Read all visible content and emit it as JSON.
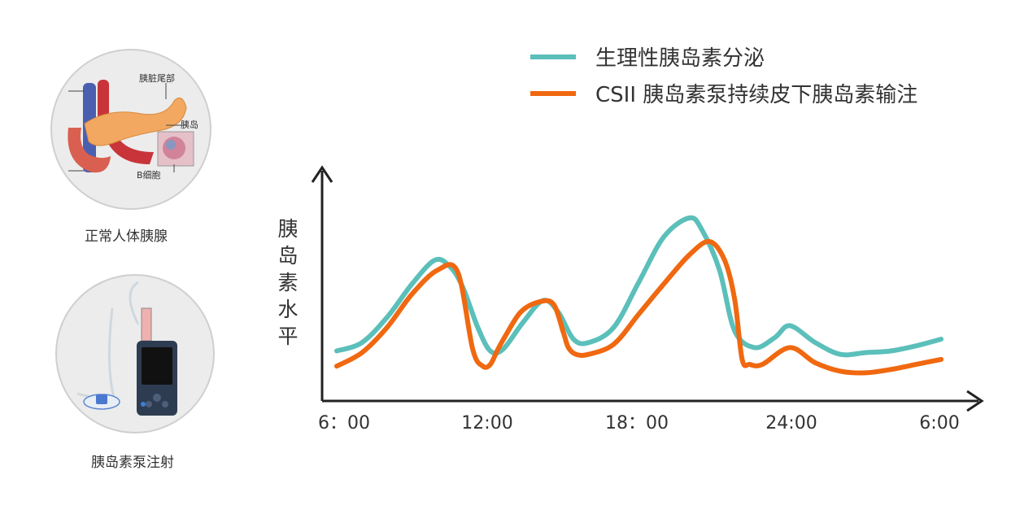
{
  "left_panel": {
    "pancreas": {
      "caption": "正常人体胰腺",
      "labels": {
        "tail": "胰脏尾部",
        "islet": "胰岛",
        "beta_cell": "B细胞"
      }
    },
    "pump": {
      "caption": "胰岛素泵注射"
    }
  },
  "chart_data": {
    "type": "line",
    "title": "",
    "xlabel": "",
    "ylabel": "胰岛素水平",
    "ylabel_chars": [
      "胰",
      "岛",
      "素",
      "水",
      "平"
    ],
    "x_tick_labels": [
      "6：00",
      "12:00",
      "18：00",
      "24:00",
      "6:00"
    ],
    "x": [
      6,
      8,
      10,
      12,
      14,
      15,
      16,
      18,
      20,
      21,
      22,
      24,
      26,
      28,
      30
    ],
    "xlim": [
      6,
      30
    ],
    "ylim": [
      0,
      10
    ],
    "grid": false,
    "legend_position": "top-right",
    "series": [
      {
        "name": "生理性胰岛素分泌",
        "color": "#5bbfba",
        "x": [
          6,
          7,
          8,
          9,
          9.9,
          10.5,
          11,
          11.6,
          12.1,
          12.6,
          13.4,
          14.2,
          14.8,
          15.4,
          16,
          17,
          18,
          19,
          20,
          20.5,
          21.2,
          21.8,
          22.6,
          23.4,
          24,
          25,
          26,
          27,
          28,
          29,
          30
        ],
        "values": [
          2.1,
          2.6,
          4.1,
          6.1,
          7.5,
          7.1,
          5.9,
          3.5,
          2.1,
          2.2,
          3.8,
          5.1,
          4.4,
          2.8,
          2.6,
          3.5,
          6.2,
          8.9,
          10.0,
          9.3,
          6.9,
          3.3,
          2.3,
          2.9,
          3.6,
          2.6,
          1.9,
          2.0,
          2.1,
          2.4,
          2.8
        ]
      },
      {
        "name": "CSII 胰岛素泵持续皮下胰岛素输注",
        "color": "#f06810",
        "x": [
          6,
          7,
          8,
          9,
          10,
          10.8,
          11.4,
          11.8,
          12.1,
          12.4,
          12.7,
          13.3,
          14,
          14.6,
          15,
          15.2,
          15.5,
          16,
          17,
          18,
          19,
          20,
          20.8,
          21.4,
          21.8,
          22.1,
          22.4,
          22.9,
          24,
          25,
          26,
          27,
          28,
          29,
          30
        ],
        "values": [
          1.2,
          2.0,
          3.5,
          5.5,
          6.9,
          6.8,
          2.2,
          1.2,
          1.3,
          2.2,
          3.0,
          4.4,
          5.0,
          4.9,
          3.2,
          2.3,
          1.9,
          1.9,
          2.5,
          4.3,
          6.1,
          7.8,
          8.6,
          7.5,
          5.2,
          1.6,
          1.3,
          1.3,
          2.3,
          1.4,
          0.9,
          0.8,
          1.0,
          1.3,
          1.6
        ]
      }
    ]
  }
}
